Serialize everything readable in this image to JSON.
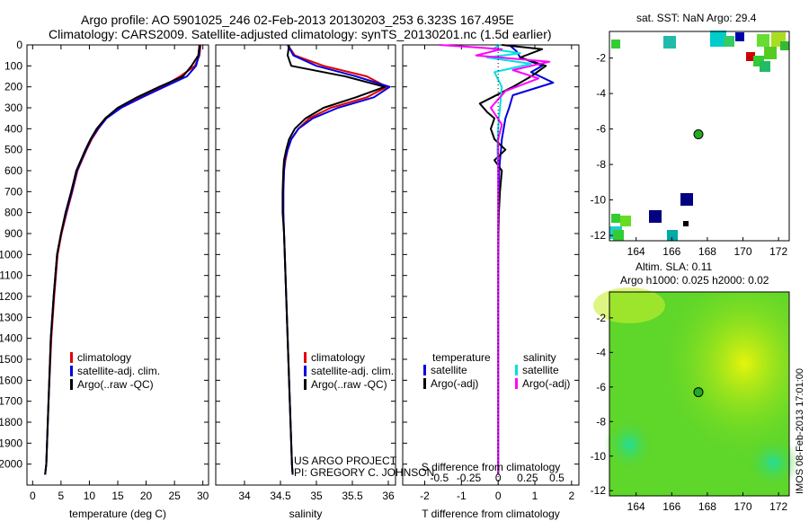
{
  "header": {
    "line1": "Argo profile: AO 5901025_246 02-Feb-2013 20130203_253 6.323S 167.495E",
    "line2": "Climatology: CARS2009. Satellite-adjusted climatology: synTS_20130201.nc (1.5d earlier)"
  },
  "credit": {
    "line1": "US ARGO PROJECT",
    "line2": "PI: GREGORY C. JOHNSON"
  },
  "side_label": "IMOS 08-Feb-2013 17:01:00",
  "map_sst": {
    "title": "sat. SST: NaN Argo: 29.4"
  },
  "map_sla": {
    "title_line1": "Altim. SLA: 0.11",
    "title_line2": "Argo h1000: 0.025 h2000: 0.02"
  },
  "colors": {
    "climatology": "#e00000",
    "satellite": "#0000e0",
    "argo": "#000000",
    "salinity_satellite": "#00e0e0",
    "salinity_argo": "#ff00ff",
    "marker": "#22aa22",
    "field_green": "#5ed62a",
    "field_yellow": "#c8ee1a"
  },
  "chart_data": [
    {
      "type": "line",
      "name": "temperature",
      "xlabel": "temperature (deg C)",
      "ylabel": "",
      "xlim": [
        -1,
        31
      ],
      "ylim": [
        2100,
        0
      ],
      "xticks": [
        0,
        5,
        10,
        15,
        20,
        25,
        30
      ],
      "yticks": [
        0,
        100,
        200,
        300,
        400,
        500,
        600,
        700,
        800,
        900,
        1000,
        1100,
        1200,
        1300,
        1400,
        1500,
        1600,
        1700,
        1800,
        1900,
        2000
      ],
      "legend": [
        "climatology",
        "satellite-adj. clim.",
        "Argo(..raw -QC)"
      ],
      "series": [
        {
          "name": "climatology",
          "color_key": "climatology",
          "x": [
            29.6,
            29.4,
            28.6,
            26,
            22.8,
            19,
            15.5,
            13,
            11.6,
            10.4,
            9.5,
            8.7,
            7.9,
            7,
            6,
            5.1,
            4.4,
            3.8,
            3.3,
            2.8,
            2.4,
            2.2
          ],
          "y": [
            0,
            50,
            100,
            150,
            200,
            250,
            300,
            350,
            400,
            450,
            500,
            550,
            600,
            700,
            800,
            900,
            1000,
            1200,
            1400,
            1700,
            2000,
            2050
          ]
        },
        {
          "name": "satellite-adj. clim.",
          "color_key": "satellite",
          "x": [
            29.5,
            29.3,
            28.8,
            27.2,
            23.2,
            19.3,
            15.6,
            13,
            11.5,
            10.3,
            9.4,
            8.6,
            7.8,
            6.9,
            5.9,
            5,
            4.3,
            3.7,
            3.2,
            2.8,
            2.4,
            2.2
          ],
          "y": [
            0,
            50,
            100,
            150,
            200,
            250,
            300,
            350,
            400,
            450,
            500,
            550,
            600,
            700,
            800,
            900,
            1000,
            1200,
            1400,
            1700,
            2000,
            2050
          ]
        },
        {
          "name": "Argo(..raw -QC)",
          "color_key": "argo",
          "x": [
            29.4,
            29.2,
            28,
            26.5,
            22.3,
            18.4,
            15,
            12.8,
            11.3,
            10.2,
            9.3,
            8.5,
            7.7,
            6.8,
            5.8,
            5,
            4.3,
            3.7,
            3.2,
            2.8,
            2.4,
            2.2
          ],
          "y": [
            0,
            50,
            100,
            150,
            200,
            250,
            300,
            350,
            400,
            450,
            500,
            550,
            600,
            700,
            800,
            900,
            1000,
            1200,
            1400,
            1700,
            2000,
            2050
          ]
        }
      ]
    },
    {
      "type": "line",
      "name": "salinity",
      "xlabel": "salinity",
      "ylabel": "",
      "xlim": [
        33.6,
        36.1
      ],
      "xticks": [
        34,
        34.5,
        35,
        35.5,
        36
      ],
      "xtick_labels": [
        "34",
        "34.5",
        "35",
        "35.5",
        "36"
      ],
      "ylim": [
        2100,
        0
      ],
      "legend": [
        "climatology",
        "satellite-adj. clim.",
        "Argo(..raw -QC)"
      ],
      "series": [
        {
          "name": "climatology",
          "color_key": "climatology",
          "x": [
            34.6,
            34.7,
            35.1,
            35.7,
            35.98,
            35.7,
            35.2,
            34.9,
            34.75,
            34.65,
            34.6,
            34.57,
            34.55,
            34.54,
            34.54,
            34.55,
            34.56,
            34.58,
            34.6,
            34.63,
            34.66,
            34.67
          ],
          "y": [
            0,
            50,
            100,
            150,
            200,
            250,
            300,
            350,
            400,
            450,
            500,
            550,
            600,
            700,
            800,
            900,
            1000,
            1200,
            1400,
            1700,
            2000,
            2050
          ]
        },
        {
          "name": "satellite-adj. clim.",
          "color_key": "satellite",
          "x": [
            34.6,
            34.68,
            35.0,
            35.55,
            36.02,
            35.8,
            35.3,
            34.95,
            34.75,
            34.65,
            34.6,
            34.56,
            34.55,
            34.54,
            34.54,
            34.55,
            34.56,
            34.58,
            34.6,
            34.63,
            34.66,
            34.67
          ],
          "y": [
            0,
            50,
            100,
            150,
            200,
            250,
            300,
            350,
            400,
            450,
            500,
            550,
            600,
            700,
            800,
            900,
            1000,
            1200,
            1400,
            1700,
            2000,
            2050
          ]
        },
        {
          "name": "Argo(..raw -QC)",
          "color_key": "argo",
          "x": [
            34.62,
            34.6,
            34.65,
            35.4,
            35.95,
            35.55,
            35.1,
            34.85,
            34.7,
            34.62,
            34.58,
            34.55,
            34.54,
            34.53,
            34.53,
            34.55,
            34.56,
            34.58,
            34.6,
            34.63,
            34.66,
            34.67
          ],
          "y": [
            0,
            50,
            100,
            150,
            200,
            250,
            300,
            350,
            400,
            450,
            500,
            550,
            600,
            700,
            800,
            900,
            1000,
            1200,
            1400,
            1700,
            2000,
            2050
          ]
        }
      ]
    },
    {
      "type": "line",
      "name": "differences",
      "xlabel": "T difference from climatology",
      "secondary_xlabel": "S difference from climatology",
      "xlim": [
        -2.6,
        2.2
      ],
      "xticks": [
        -2,
        -1,
        0,
        1,
        2
      ],
      "xtick_labels": [
        "-2",
        "-1",
        "0",
        "1",
        "2"
      ],
      "secondary_xticks": [
        -0.5,
        -0.25,
        0,
        0.25,
        0.5
      ],
      "secondary_xtick_labels": [
        "-0.5",
        "-0.25",
        "0",
        "0.25",
        "0.5"
      ],
      "secondary_scale": 3.2,
      "ylim": [
        2100,
        0
      ],
      "legend_temperature": {
        "title": "temperature",
        "items": [
          "satellite",
          "Argo(-adj)"
        ]
      },
      "legend_salinity": {
        "title": "salinity",
        "items": [
          "satellite",
          "Argo(-adj)"
        ]
      },
      "series": [
        {
          "name": "temperature satellite",
          "color_key": "satellite",
          "x": [
            0.3,
            0.5,
            0.6,
            1.2,
            0.9,
            1.5,
            0.4,
            0.3,
            0.2,
            0.15,
            0.1,
            0.08,
            0.05,
            0.03,
            0.02,
            0.01,
            0,
            0,
            0,
            0,
            0
          ],
          "y": [
            0,
            30,
            60,
            100,
            130,
            180,
            240,
            300,
            350,
            400,
            450,
            500,
            550,
            600,
            700,
            800,
            900,
            1200,
            1500,
            1800,
            2050
          ]
        },
        {
          "name": "temperature Argo(-adj)",
          "color_key": "argo",
          "x": [
            0.1,
            1.2,
            0.6,
            1.3,
            0.9,
            0.4,
            -0.5,
            -0.3,
            -0.1,
            -0.2,
            -0.1,
            0.2,
            -0.1,
            0.1,
            0.05,
            0.02,
            0.01,
            0,
            0,
            0,
            0
          ],
          "y": [
            0,
            20,
            60,
            100,
            150,
            200,
            280,
            320,
            350,
            400,
            450,
            500,
            550,
            600,
            700,
            800,
            900,
            1200,
            1500,
            1800,
            2050
          ]
        },
        {
          "name": "salinity satellite",
          "color_key": "salinity_satellite",
          "x": [
            0.05,
            -0.15,
            0.6,
            -0.3,
            0.9,
            -0.1,
            0.1,
            0.05,
            0.02,
            0,
            -0.02,
            0,
            0,
            0,
            0,
            0,
            0,
            0
          ],
          "y": [
            0,
            20,
            40,
            60,
            90,
            130,
            200,
            300,
            350,
            400,
            500,
            600,
            700,
            900,
            1100,
            1400,
            1700,
            2050
          ]
        },
        {
          "name": "salinity Argo(-adj)",
          "color_key": "salinity_argo",
          "x": [
            -1.6,
            0.1,
            -0.6,
            1.4,
            0.4,
            1.1,
            0.2,
            -0.2,
            0.1,
            0,
            0,
            0,
            0,
            0,
            0,
            0
          ],
          "y": [
            0,
            20,
            50,
            80,
            120,
            160,
            220,
            300,
            380,
            450,
            550,
            700,
            900,
            1200,
            1600,
            2050
          ]
        }
      ]
    },
    {
      "type": "heatmap",
      "name": "map_sst",
      "xlim": [
        162.5,
        172.6
      ],
      "ylim": [
        -12.3,
        -0.5
      ],
      "xticks": [
        164,
        166,
        168,
        170,
        172
      ],
      "yticks": [
        -2,
        -4,
        -6,
        -8,
        -10,
        -12
      ],
      "marker": {
        "lon": 167.5,
        "lat": -6.3
      }
    },
    {
      "type": "heatmap",
      "name": "map_sla",
      "xlim": [
        162.5,
        172.6
      ],
      "ylim": [
        -12.3,
        -0.5
      ],
      "xticks": [
        164,
        166,
        168,
        170,
        172
      ],
      "yticks": [
        -2,
        -4,
        -6,
        -8,
        -10,
        -12
      ],
      "marker": {
        "lon": 167.5,
        "lat": -6.3
      }
    }
  ]
}
